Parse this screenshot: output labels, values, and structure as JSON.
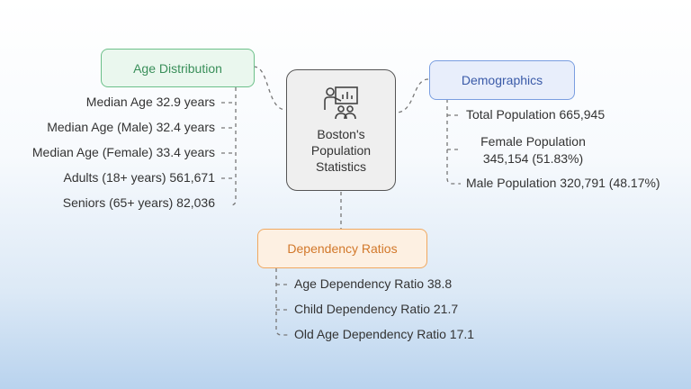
{
  "center": {
    "label": "Boston's Population Statistics"
  },
  "groups": [
    {
      "title": "Age Distribution",
      "items": [
        "Median Age 32.9 years",
        "Median Age (Male) 32.4 years",
        "Median Age (Female) 33.4 years",
        "Adults (18+ years) 561,671",
        "Seniors (65+ years) 82,036"
      ]
    },
    {
      "title": "Demographics",
      "items": [
        "Total Population 665,945",
        "Female Population 345,154 (51.83%)",
        "Male Population 320,791 (48.17%)"
      ]
    },
    {
      "title": "Dependency Ratios",
      "items": [
        "Age Dependency Ratio 38.8",
        "Child Dependency Ratio 21.7",
        "Old Age Dependency Ratio 17.1"
      ]
    }
  ]
}
